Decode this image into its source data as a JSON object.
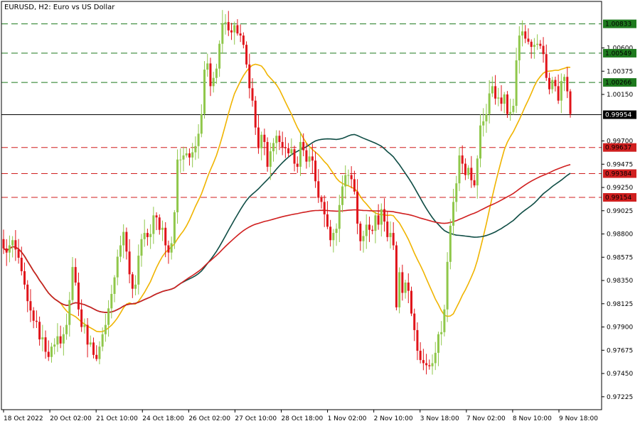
{
  "chart_data": {
    "type": "candlestick",
    "title": "EURUSD, H2:  Euro vs US Dollar",
    "ylim": [
      0.971,
      1.0105
    ],
    "x_ticks": [
      "18 Oct 2022",
      "20 Oct 02:00",
      "21 Oct 10:00",
      "24 Oct 18:00",
      "26 Oct 02:00",
      "27 Oct 10:00",
      "28 Oct 18:00",
      "1 Nov 02:00",
      "2 Nov 10:00",
      "3 Nov 18:00",
      "7 Nov 02:00",
      "8 Nov 10:00",
      "9 Nov 18:00"
    ],
    "y_ticks": [
      "1.00600",
      "1.00375",
      "1.00150",
      "0.99700",
      "0.99475",
      "0.99250",
      "0.99025",
      "0.98800",
      "0.98575",
      "0.98350",
      "0.98125",
      "0.97900",
      "0.97675",
      "0.97450",
      "0.97225"
    ],
    "current_price": {
      "value": 0.99954,
      "label": "0.99954"
    },
    "levels": [
      {
        "value": 1.00833,
        "label": "1.00833",
        "type": "resistance"
      },
      {
        "value": 1.00549,
        "label": "1.00549",
        "type": "resistance"
      },
      {
        "value": 1.00266,
        "label": "1.00266",
        "type": "resistance"
      },
      {
        "value": 0.99637,
        "label": "0.99637",
        "type": "support"
      },
      {
        "value": 0.99384,
        "label": "0.99384",
        "type": "support"
      },
      {
        "value": 0.99154,
        "label": "0.99154",
        "type": "support"
      }
    ],
    "closes": [
      0.9866,
      0.9862,
      0.9869,
      0.9874,
      0.9865,
      0.9857,
      0.9844,
      0.9831,
      0.9815,
      0.9806,
      0.9796,
      0.9795,
      0.9778,
      0.978,
      0.9766,
      0.9761,
      0.9771,
      0.9773,
      0.9781,
      0.9774,
      0.9783,
      0.9792,
      0.9816,
      0.9848,
      0.9833,
      0.9807,
      0.979,
      0.9792,
      0.9773,
      0.9775,
      0.9763,
      0.9759,
      0.9771,
      0.9783,
      0.9792,
      0.9808,
      0.9822,
      0.9838,
      0.9858,
      0.9869,
      0.9882,
      0.9863,
      0.9841,
      0.9827,
      0.9831,
      0.9859,
      0.9875,
      0.9881,
      0.9877,
      0.988,
      0.9898,
      0.9896,
      0.9884,
      0.9886,
      0.9869,
      0.9862,
      0.9871,
      0.9901,
      0.9952,
      0.9952,
      0.9956,
      0.9958,
      0.9954,
      0.9959,
      0.9965,
      0.9977,
      0.9996,
      1.0039,
      1.0045,
      1.0023,
      1.0031,
      1.004,
      1.0064,
      1.0084,
      1.0085,
      1.0077,
      1.0075,
      1.0082,
      1.0074,
      1.0072,
      1.0063,
      1.0044,
      1.0021,
      1.0009,
      0.9983,
      0.9963,
      0.9976,
      0.9969,
      0.9945,
      0.996,
      0.9968,
      0.9975,
      0.9969,
      0.9964,
      0.9963,
      0.9958,
      0.9962,
      0.9948,
      0.9945,
      0.9969,
      0.9961,
      0.995,
      0.9955,
      0.9951,
      0.9931,
      0.9915,
      0.9911,
      0.9899,
      0.9887,
      0.9874,
      0.9881,
      0.9885,
      0.9908,
      0.9926,
      0.9937,
      0.9937,
      0.9933,
      0.9921,
      0.989,
      0.9873,
      0.9878,
      0.9889,
      0.9884,
      0.9883,
      0.9898,
      0.9889,
      0.9904,
      0.9892,
      0.9877,
      0.9881,
      0.9869,
      0.9809,
      0.9843,
      0.9823,
      0.9833,
      0.9825,
      0.9803,
      0.9787,
      0.9767,
      0.9758,
      0.9755,
      0.9753,
      0.9752,
      0.9755,
      0.9765,
      0.9783,
      0.9785,
      0.9807,
      0.9853,
      0.9888,
      0.9911,
      0.9929,
      0.9956,
      0.9948,
      0.9937,
      0.9944,
      0.9932,
      0.9927,
      0.9953,
      0.9985,
      0.9989,
      0.9996,
      1.0016,
      1.0023,
      1.0011,
      1.0012,
      1.0006,
      1.0015,
      0.9996,
      0.9998,
      1.0004,
      1.0048,
      1.0072,
      1.0076,
      1.0069,
      1.0066,
      1.0061,
      1.0063,
      1.0064,
      1.0062,
      1.0054,
      1.0031,
      1.002,
      1.0029,
      1.0023,
      1.0009,
      1.0028,
      1.0032,
      1.0018,
      0.9996
    ]
  }
}
